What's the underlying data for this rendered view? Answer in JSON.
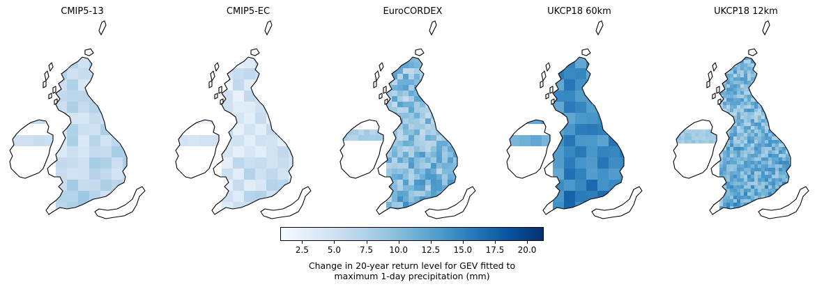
{
  "panels": [
    {
      "title": "CMIP5-13",
      "intensity": 0.22,
      "resolution": "coarse"
    },
    {
      "title": "CMIP5-EC",
      "intensity": 0.16,
      "resolution": "coarse"
    },
    {
      "title": "EuroCORDEX",
      "intensity": 0.4,
      "resolution": "medium"
    },
    {
      "title": "UKCP18 60km",
      "intensity": 0.62,
      "resolution": "coarse"
    },
    {
      "title": "UKCP18 12km",
      "intensity": 0.45,
      "resolution": "fine"
    }
  ],
  "colorbar": {
    "min": 0.8,
    "max": 21.3,
    "ticks": [
      "2.5",
      "5.0",
      "7.5",
      "10.0",
      "12.5",
      "15.0",
      "17.5",
      "20.0"
    ],
    "title_line1": "Change in 20-year return level for GEV fitted to",
    "title_line2": "maximum 1-day precipitation (mm)",
    "colormap": "Blues"
  }
}
